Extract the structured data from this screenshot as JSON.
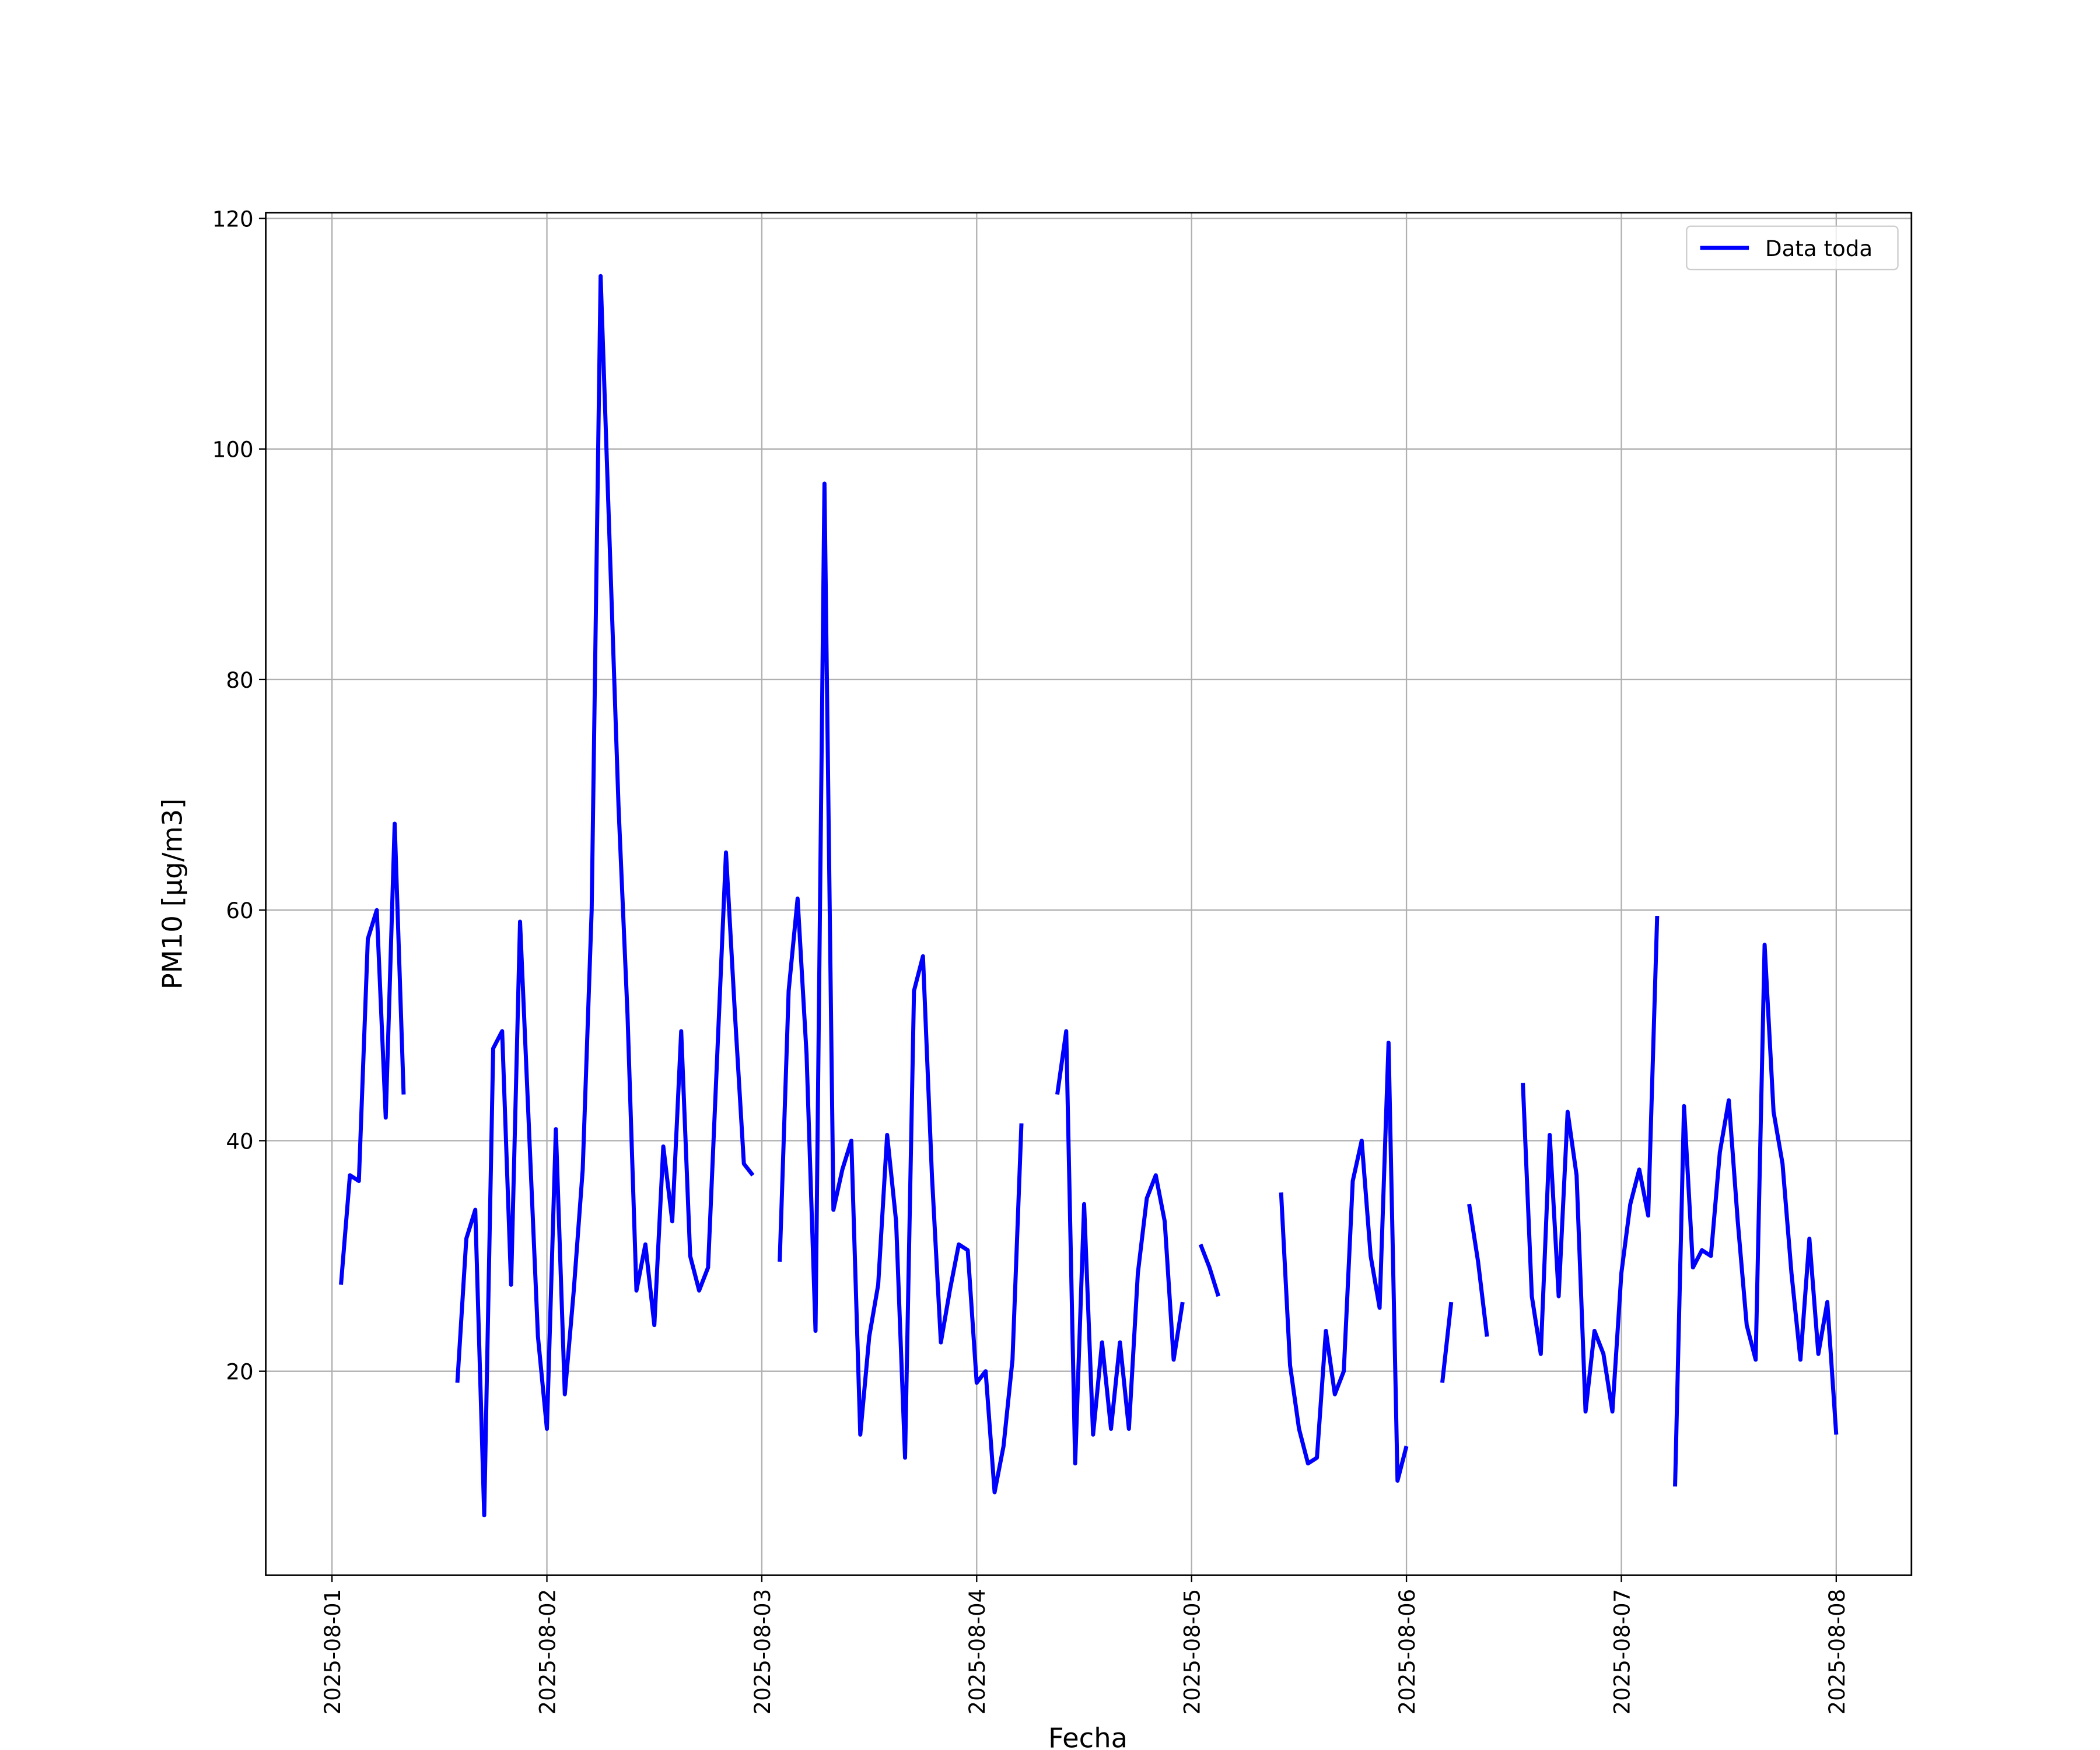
{
  "chart_data": {
    "type": "line",
    "xlabel": "Fecha",
    "ylabel": "PM10 [μg/m3]",
    "x": [
      "2025-08-01 01:00",
      "2025-08-01 02:00",
      "2025-08-01 03:00",
      "2025-08-01 04:00",
      "2025-08-01 05:00",
      "2025-08-01 06:00",
      "2025-08-01 07:00",
      "2025-08-01 08:00",
      "2025-08-01 09:00",
      "2025-08-01 10:00",
      "2025-08-01 11:00",
      "2025-08-01 12:00",
      "2025-08-01 13:00",
      "2025-08-01 14:00",
      "2025-08-01 15:00",
      "2025-08-01 16:00",
      "2025-08-01 17:00",
      "2025-08-01 18:00",
      "2025-08-01 19:00",
      "2025-08-01 20:00",
      "2025-08-01 21:00",
      "2025-08-01 22:00",
      "2025-08-01 23:00",
      "2025-08-02 00:00",
      "2025-08-02 01:00",
      "2025-08-02 02:00",
      "2025-08-02 03:00",
      "2025-08-02 04:00",
      "2025-08-02 05:00",
      "2025-08-02 06:00",
      "2025-08-02 07:00",
      "2025-08-02 08:00",
      "2025-08-02 09:00",
      "2025-08-02 10:00",
      "2025-08-02 11:00",
      "2025-08-02 12:00",
      "2025-08-02 13:00",
      "2025-08-02 14:00",
      "2025-08-02 15:00",
      "2025-08-02 16:00",
      "2025-08-02 17:00",
      "2025-08-02 18:00",
      "2025-08-02 19:00",
      "2025-08-02 20:00",
      "2025-08-02 21:00",
      "2025-08-02 22:00",
      "2025-08-02 23:00",
      "2025-08-03 00:00",
      "2025-08-03 01:00",
      "2025-08-03 02:00",
      "2025-08-03 03:00",
      "2025-08-03 04:00",
      "2025-08-03 05:00",
      "2025-08-03 06:00",
      "2025-08-03 07:00",
      "2025-08-03 08:00",
      "2025-08-03 09:00",
      "2025-08-03 10:00",
      "2025-08-03 11:00",
      "2025-08-03 12:00",
      "2025-08-03 13:00",
      "2025-08-03 14:00",
      "2025-08-03 15:00",
      "2025-08-03 16:00",
      "2025-08-03 17:00",
      "2025-08-03 18:00",
      "2025-08-03 19:00",
      "2025-08-03 20:00",
      "2025-08-03 21:00",
      "2025-08-03 22:00",
      "2025-08-03 23:00",
      "2025-08-04 00:00",
      "2025-08-04 01:00",
      "2025-08-04 02:00",
      "2025-08-04 03:00",
      "2025-08-04 04:00",
      "2025-08-04 05:00",
      "2025-08-04 06:00",
      "2025-08-04 07:00",
      "2025-08-04 08:00",
      "2025-08-04 09:00",
      "2025-08-04 10:00",
      "2025-08-04 11:00",
      "2025-08-04 12:00",
      "2025-08-04 13:00",
      "2025-08-04 14:00",
      "2025-08-04 15:00",
      "2025-08-04 16:00",
      "2025-08-04 17:00",
      "2025-08-04 18:00",
      "2025-08-04 19:00",
      "2025-08-04 20:00",
      "2025-08-04 21:00",
      "2025-08-04 22:00",
      "2025-08-04 23:00",
      "2025-08-05 00:00",
      "2025-08-05 01:00",
      "2025-08-05 02:00",
      "2025-08-05 03:00",
      "2025-08-05 04:00",
      "2025-08-05 05:00",
      "2025-08-05 06:00",
      "2025-08-05 07:00",
      "2025-08-05 08:00",
      "2025-08-05 09:00",
      "2025-08-05 10:00",
      "2025-08-05 11:00",
      "2025-08-05 12:00",
      "2025-08-05 13:00",
      "2025-08-05 14:00",
      "2025-08-05 15:00",
      "2025-08-05 16:00",
      "2025-08-05 17:00",
      "2025-08-05 18:00",
      "2025-08-05 19:00",
      "2025-08-05 20:00",
      "2025-08-05 21:00",
      "2025-08-05 22:00",
      "2025-08-05 23:00",
      "2025-08-06 00:00",
      "2025-08-06 01:00",
      "2025-08-06 02:00",
      "2025-08-06 03:00",
      "2025-08-06 04:00",
      "2025-08-06 05:00",
      "2025-08-06 06:00",
      "2025-08-06 07:00",
      "2025-08-06 08:00",
      "2025-08-06 09:00",
      "2025-08-06 10:00",
      "2025-08-06 11:00",
      "2025-08-06 12:00",
      "2025-08-06 13:00",
      "2025-08-06 14:00",
      "2025-08-06 15:00",
      "2025-08-06 16:00",
      "2025-08-06 17:00",
      "2025-08-06 18:00",
      "2025-08-06 19:00",
      "2025-08-06 20:00",
      "2025-08-06 21:00",
      "2025-08-06 22:00",
      "2025-08-06 23:00",
      "2025-08-07 00:00",
      "2025-08-07 01:00",
      "2025-08-07 02:00",
      "2025-08-07 03:00",
      "2025-08-07 04:00",
      "2025-08-07 05:00",
      "2025-08-07 06:00",
      "2025-08-07 07:00",
      "2025-08-07 08:00",
      "2025-08-07 09:00",
      "2025-08-07 10:00",
      "2025-08-07 11:00",
      "2025-08-07 12:00",
      "2025-08-07 13:00",
      "2025-08-07 14:00",
      "2025-08-07 15:00",
      "2025-08-07 16:00",
      "2025-08-07 17:00",
      "2025-08-07 18:00",
      "2025-08-07 19:00",
      "2025-08-07 20:00",
      "2025-08-07 21:00",
      "2025-08-07 22:00",
      "2025-08-07 23:00",
      "2025-08-08 00:00"
    ],
    "series": [
      {
        "name": "Data toda",
        "color": "#0000ff",
        "values": [
          27.5,
          37,
          36.5,
          57.5,
          60,
          42,
          67.5,
          44,
          null,
          null,
          null,
          null,
          null,
          19,
          31.5,
          34,
          7.5,
          48,
          49.5,
          27.5,
          59,
          41,
          23,
          15,
          41,
          18,
          27,
          37.5,
          60,
          115,
          92,
          69,
          51,
          27,
          31,
          24,
          39.5,
          33,
          49.5,
          30,
          27,
          29,
          47,
          65,
          51,
          38,
          37,
          null,
          null,
          29.5,
          53,
          61,
          47.5,
          23.5,
          97,
          34,
          37.5,
          40,
          14.5,
          23,
          27.5,
          40.5,
          33,
          12.5,
          53,
          56,
          37,
          22.5,
          27,
          31,
          30.5,
          19,
          20,
          9.5,
          13.5,
          21,
          41.5,
          null,
          null,
          null,
          44,
          49.5,
          12,
          34.5,
          14.5,
          22.5,
          15,
          22.5,
          15,
          28.5,
          35,
          37,
          33,
          21,
          26,
          null,
          31,
          29,
          26.5,
          null,
          null,
          null,
          null,
          null,
          null,
          35.5,
          20.5,
          15,
          12,
          12.5,
          23.5,
          18,
          20,
          36.5,
          40,
          30,
          25.5,
          48.5,
          10.5,
          13.5,
          null,
          null,
          null,
          19,
          26,
          null,
          34.5,
          29.5,
          23,
          null,
          null,
          null,
          45,
          26.5,
          21.5,
          40.5,
          26.5,
          42.5,
          37,
          16.5,
          23.5,
          21.5,
          16.5,
          28.5,
          34.5,
          37.5,
          33.5,
          59.5,
          null,
          10,
          43,
          29,
          30.5,
          30,
          39,
          43.5,
          33,
          24,
          21,
          57,
          42.5,
          38,
          28.5,
          21,
          31.5,
          21.5,
          26,
          14.5
        ]
      }
    ],
    "xlim": [
      "2025-07-31 16:36",
      "2025-08-08 08:24"
    ],
    "xticks": [
      "2025-08-01",
      "2025-08-02",
      "2025-08-03",
      "2025-08-04",
      "2025-08-05",
      "2025-08-06",
      "2025-08-07",
      "2025-08-08"
    ],
    "ylim": [
      2.3,
      120.5
    ],
    "yticks": [
      20,
      40,
      60,
      80,
      100,
      120
    ],
    "grid": true,
    "legend": "upper right"
  }
}
